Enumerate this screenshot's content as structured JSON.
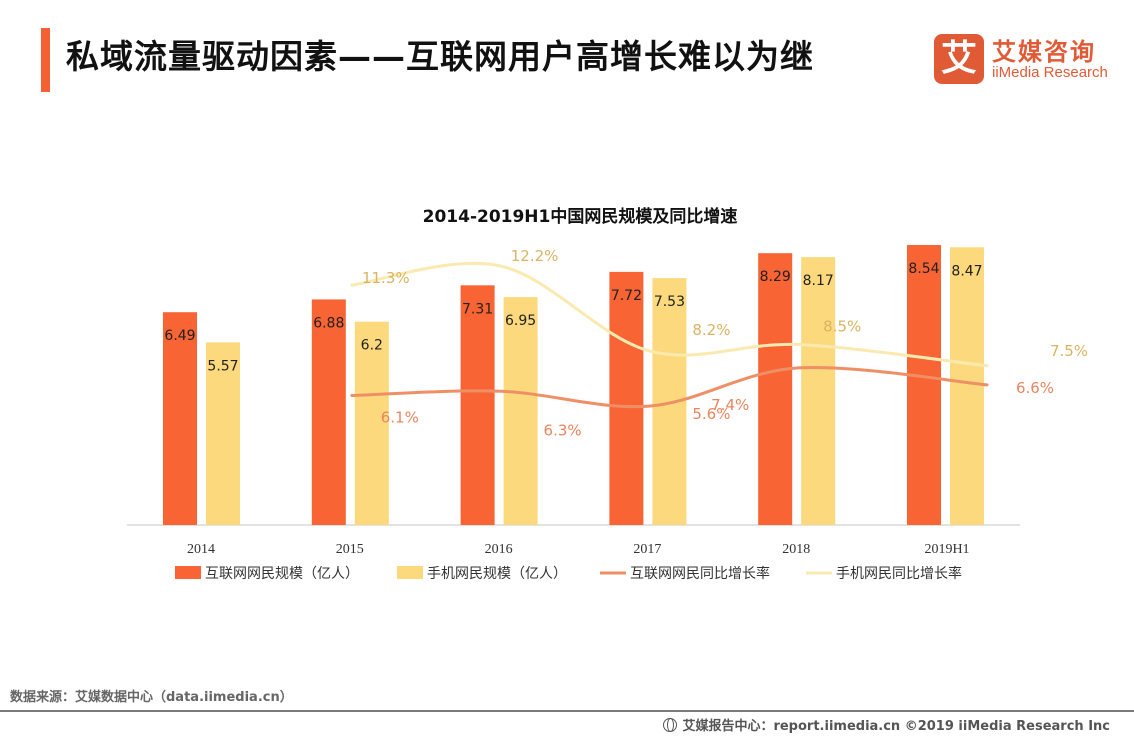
{
  "header": {
    "title": "私域流量驱动因素——互联网用户高增长难以为继",
    "accent_color": "#f26033"
  },
  "logo": {
    "mark": "艾",
    "cn": "艾媒咨询",
    "en": "iiMedia Research",
    "color": "#e05a36"
  },
  "chart_data": {
    "type": "bar",
    "title": "2014-2019H1中国网民规模及同比增速",
    "categories": [
      "2014",
      "2015",
      "2016",
      "2017",
      "2018",
      "2019H1"
    ],
    "xlabel": "",
    "ylabel": "",
    "grid": false,
    "legend_position": "bottom",
    "series": [
      {
        "name": "互联网网民规模（亿人）",
        "kind": "bar",
        "color": "#f86433",
        "values": [
          6.49,
          6.88,
          7.31,
          7.72,
          8.29,
          8.54
        ],
        "labels": [
          "6.49",
          "6.88",
          "7.31",
          "7.72",
          "8.29",
          "8.54"
        ]
      },
      {
        "name": "手机网民规模（亿人）",
        "kind": "bar",
        "color": "#fcd97d",
        "values": [
          5.57,
          6.2,
          6.95,
          7.53,
          8.17,
          8.47
        ],
        "labels": [
          "5.57",
          "6.2",
          "6.95",
          "7.53",
          "8.17",
          "8.47"
        ]
      },
      {
        "name": "互联网网民同比增长率",
        "kind": "line",
        "color": "#ef8f66",
        "label_color": "#e8865f",
        "values": [
          null,
          6.1,
          6.3,
          5.6,
          7.4,
          6.6
        ],
        "labels": [
          "",
          "6.1%",
          "6.3%",
          "5.6%",
          "7.4%",
          "6.6%"
        ]
      },
      {
        "name": "手机网民同比增长率",
        "kind": "line",
        "color": "#faeab0",
        "label_color": "#d9b463",
        "values": [
          null,
          11.3,
          12.2,
          8.2,
          8.5,
          7.5
        ],
        "labels": [
          "",
          "11.3%",
          "12.2%",
          "8.2%",
          "8.5%",
          "7.5%"
        ]
      }
    ],
    "ylim_bars": [
      0,
      9
    ],
    "ylim_lines": [
      0,
      17
    ]
  },
  "source": "数据来源：艾媒数据中心（data.iimedia.cn）",
  "footer": "艾媒报告中心：report.iimedia.cn ©2019  iiMedia Research  Inc"
}
